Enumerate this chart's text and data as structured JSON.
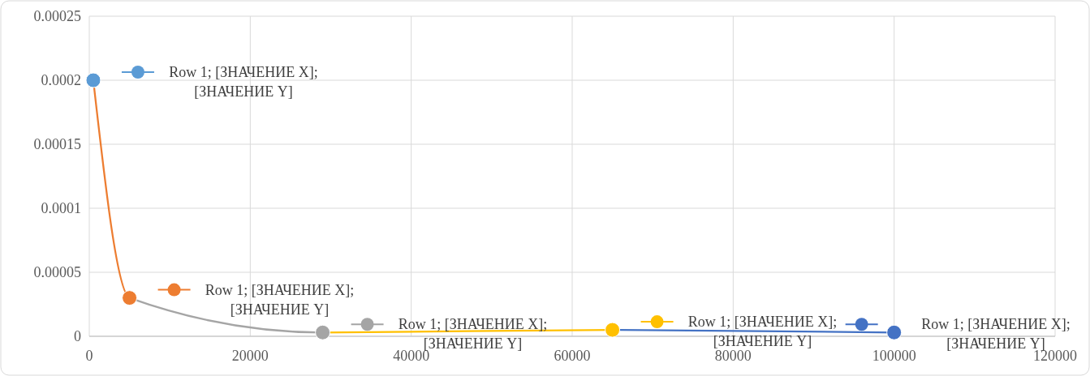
{
  "chart_data": {
    "type": "line",
    "x": [
      500,
      5000,
      29000,
      65000,
      100000
    ],
    "series": [
      {
        "values": [
          0.0002,
          3e-05,
          3e-06,
          5e-06,
          3e-06
        ],
        "colors": [
          "#5b9bd5",
          "#ed7d31",
          "#a5a5a5",
          "#ffc000",
          "#4472c4"
        ]
      }
    ],
    "marker": "circle",
    "xlim": [
      0,
      120000
    ],
    "xticks": [
      0,
      20000,
      40000,
      60000,
      80000,
      100000,
      120000
    ],
    "ylim": [
      0,
      0.00025
    ],
    "yticks": [
      0,
      {
        "value": 5e-05,
        "label": "0.00005"
      },
      0.0001,
      0.00015,
      0.0002,
      0.00025
    ],
    "grid": true,
    "annotations": [
      "Row 1; [ЗНАЧЕНИЕ X]; [ЗНАЧЕНИЕ Y]",
      "Row 1; [ЗНАЧЕНИЕ X]; [ЗНАЧЕНИЕ Y]",
      "Row 1; [ЗНАЧЕНИЕ X]; [ЗНАЧЕНИЕ Y]",
      "Row 1; [ЗНАЧЕНИЕ X]; [ЗНАЧЕНИЕ Y]",
      "Row 1; [ЗНАЧЕНИЕ X]; [ЗНАЧЕНИЕ Y]"
    ]
  }
}
